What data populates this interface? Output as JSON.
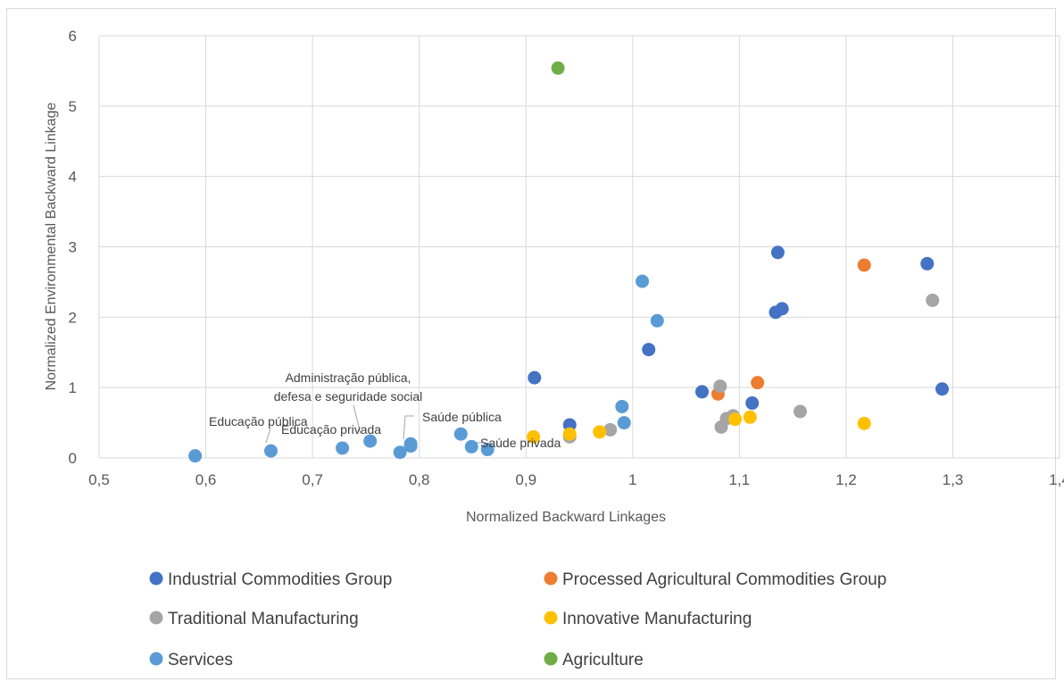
{
  "chart_data": {
    "type": "scatter",
    "title": "",
    "xlabel": "Normalized Backward Linkages",
    "ylabel": "Normalized Environmental Backward Linkage",
    "xlim": [
      0.5,
      1.4
    ],
    "ylim": [
      0,
      6
    ],
    "x_ticks": [
      "0,5",
      "0,6",
      "0,7",
      "0,8",
      "0,9",
      "1",
      "1,1",
      "1,2",
      "1,3",
      "1,4"
    ],
    "y_ticks": [
      "0",
      "1",
      "2",
      "3",
      "4",
      "5",
      "6"
    ],
    "grid": true,
    "legend_position": "bottom",
    "series": [
      {
        "name": "Industrial Commodities Group",
        "color": "#4472c4",
        "points": [
          [
            0.908,
            1.14
          ],
          [
            0.941,
            0.47
          ],
          [
            1.015,
            1.54
          ],
          [
            1.065,
            0.94
          ],
          [
            1.112,
            0.78
          ],
          [
            1.134,
            2.07
          ],
          [
            1.136,
            2.92
          ],
          [
            1.14,
            2.12
          ],
          [
            1.276,
            2.76
          ],
          [
            1.29,
            0.98
          ]
        ]
      },
      {
        "name": "Processed Agricultural Commodities Group",
        "color": "#ed7d31",
        "points": [
          [
            1.08,
            0.91
          ],
          [
            1.117,
            1.07
          ],
          [
            1.217,
            2.74
          ]
        ]
      },
      {
        "name": "Traditional Manufacturing",
        "color": "#a5a5a5",
        "points": [
          [
            0.941,
            0.3
          ],
          [
            0.979,
            0.4
          ],
          [
            1.082,
            1.02
          ],
          [
            1.083,
            0.44
          ],
          [
            1.088,
            0.56
          ],
          [
            1.094,
            0.6
          ],
          [
            1.157,
            0.66
          ],
          [
            1.281,
            2.24
          ]
        ]
      },
      {
        "name": "Innovative Manufacturing",
        "color": "#ffc000",
        "points": [
          [
            0.907,
            0.3
          ],
          [
            0.941,
            0.34
          ],
          [
            0.969,
            0.37
          ],
          [
            1.096,
            0.55
          ],
          [
            1.11,
            0.58
          ],
          [
            1.217,
            0.49
          ]
        ]
      },
      {
        "name": "Services",
        "color": "#5b9bd5",
        "points": [
          [
            0.59,
            0.03
          ],
          [
            0.661,
            0.1
          ],
          [
            0.728,
            0.14
          ],
          [
            0.754,
            0.24
          ],
          [
            0.782,
            0.08
          ],
          [
            0.792,
            0.17
          ],
          [
            0.792,
            0.2
          ],
          [
            0.839,
            0.34
          ],
          [
            0.849,
            0.16
          ],
          [
            0.864,
            0.12
          ],
          [
            0.99,
            0.73
          ],
          [
            0.992,
            0.5
          ],
          [
            1.009,
            2.51
          ],
          [
            1.023,
            1.95
          ]
        ]
      },
      {
        "name": "Agriculture",
        "color": "#70ad47",
        "points": [
          [
            0.93,
            5.54
          ]
        ]
      }
    ],
    "annotations": [
      {
        "text": "Educação pública",
        "x": 0.661,
        "y": 0.1
      },
      {
        "text": "Educação privada",
        "x": 0.792,
        "y": 0.17
      },
      {
        "text": "Administração pública,",
        "x": 0.754,
        "y": 0.24
      },
      {
        "text": "defesa e seguridade social",
        "x": 0.754,
        "y": 0.24
      },
      {
        "text": "Saúde pública",
        "x": 0.792,
        "y": 0.2
      },
      {
        "text": "Saúde privada",
        "x": 0.849,
        "y": 0.16
      }
    ]
  }
}
